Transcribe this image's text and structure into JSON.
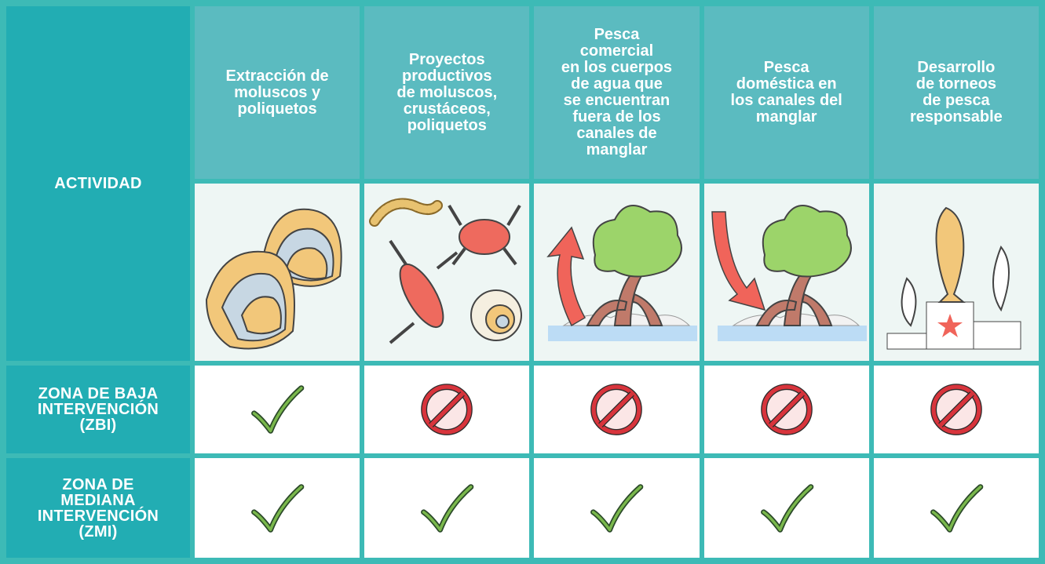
{
  "table": {
    "corner": "ACTIVIDAD",
    "columns": [
      "Extracción de\nmoluscos y\npoliquetos",
      "Proyectos\nproductivos\nde moluscos,\ncrustáceos,\npoliquetos",
      "Pesca\ncomercial\nen los cuerpos\nde agua que\nse encuentran\nfuera de los\ncanales de\nmanglar",
      "Pesca\ndoméstica en\nlos canales del\nmanglar",
      "Desarrollo\nde torneos\nde pesca\nresponsable"
    ],
    "rows": [
      {
        "label": "ZONA DE BAJA\nINTERVENCIÓN\n(ZBI)"
      },
      {
        "label": "ZONA DE\nMEDIANA\nINTERVENCIÓN\n(ZMI)"
      }
    ]
  }
}
